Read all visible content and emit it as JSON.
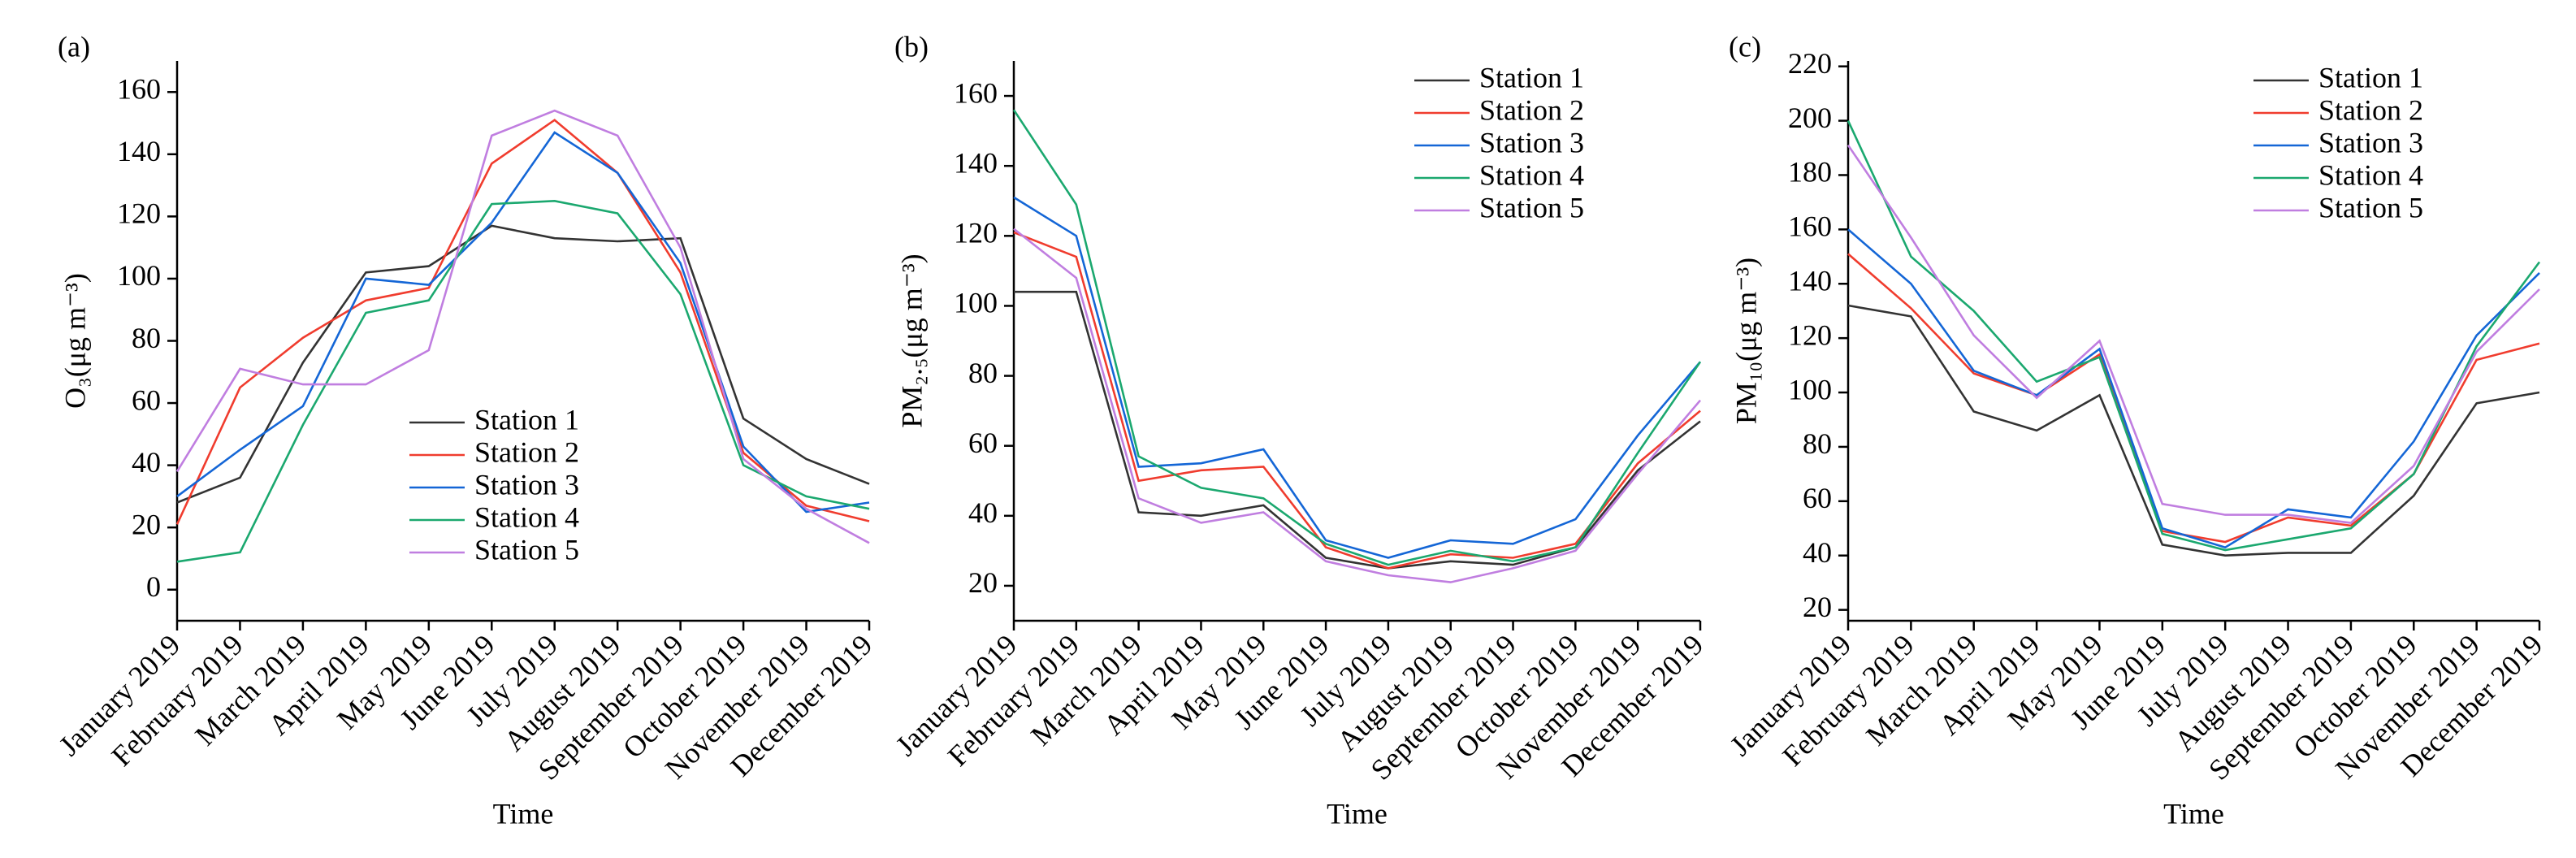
{
  "chart_data": [
    {
      "type": "line",
      "title": "(a)",
      "y_label": "O₃(μg m⁻³)",
      "x_label": "Time",
      "categories": [
        "January 2019",
        "February 2019",
        "March 2019",
        "April 2019",
        "May 2019",
        "June 2019",
        "July 2019",
        "August 2019",
        "September 2019",
        "October 2019",
        "November 2019",
        "December 2019"
      ],
      "series": [
        {
          "name": "Station 1",
          "color": "#333333",
          "values": [
            28,
            36,
            73,
            102,
            104,
            117,
            113,
            112,
            113,
            55,
            42,
            34
          ]
        },
        {
          "name": "Station 2",
          "color": "#f03c2e",
          "values": [
            21,
            65,
            81,
            93,
            97,
            137,
            151,
            134,
            102,
            44,
            27,
            22
          ]
        },
        {
          "name": "Station 3",
          "color": "#1466d6",
          "values": [
            30,
            45,
            59,
            100,
            98,
            118,
            147,
            134,
            105,
            46,
            25,
            28
          ]
        },
        {
          "name": "Station 4",
          "color": "#1ba86f",
          "values": [
            9,
            12,
            53,
            89,
            93,
            124,
            125,
            121,
            95,
            40,
            30,
            26
          ]
        },
        {
          "name": "Station 5",
          "color": "#c07ee0",
          "values": [
            38,
            71,
            66,
            66,
            77,
            146,
            154,
            146,
            110,
            42,
            26,
            15
          ]
        }
      ],
      "ylim": [
        -10,
        170
      ],
      "yticks": [
        0,
        20,
        40,
        60,
        80,
        100,
        120,
        140,
        160
      ],
      "legend": "lower center"
    },
    {
      "type": "line",
      "title": "(b)",
      "y_label": "PM₂.₅(μg m⁻³)",
      "x_label": "Time",
      "categories": [
        "January 2019",
        "February 2019",
        "March 2019",
        "April 2019",
        "May 2019",
        "June 2019",
        "July 2019",
        "August 2019",
        "September 2019",
        "October 2019",
        "November 2019",
        "December 2019"
      ],
      "series": [
        {
          "name": "Station 1",
          "color": "#333333",
          "values": [
            104,
            104,
            41,
            40,
            43,
            28,
            25,
            27,
            26,
            31,
            53,
            67
          ]
        },
        {
          "name": "Station 2",
          "color": "#f03c2e",
          "values": [
            121,
            114,
            50,
            53,
            54,
            31,
            25,
            29,
            28,
            32,
            55,
            70
          ]
        },
        {
          "name": "Station 3",
          "color": "#1466d6",
          "values": [
            131,
            120,
            54,
            55,
            59,
            33,
            28,
            33,
            32,
            39,
            63,
            84
          ]
        },
        {
          "name": "Station 4",
          "color": "#1ba86f",
          "values": [
            156,
            129,
            57,
            48,
            45,
            32,
            26,
            30,
            27,
            31,
            58,
            84
          ]
        },
        {
          "name": "Station 5",
          "color": "#c07ee0",
          "values": [
            122,
            108,
            45,
            38,
            41,
            27,
            23,
            21,
            25,
            30,
            52,
            73
          ]
        }
      ],
      "ylim": [
        10,
        170
      ],
      "yticks": [
        20,
        40,
        60,
        80,
        100,
        120,
        140,
        160
      ],
      "legend": "upper right"
    },
    {
      "type": "line",
      "title": "(c)",
      "y_label": "PM₁₀(μg m⁻³)",
      "x_label": "Time",
      "categories": [
        "January 2019",
        "February 2019",
        "March 2019",
        "April 2019",
        "May 2019",
        "June 2019",
        "July 2019",
        "August 2019",
        "September 2019",
        "October 2019",
        "November 2019",
        "December 2019"
      ],
      "series": [
        {
          "name": "Station 1",
          "color": "#333333",
          "values": [
            132,
            128,
            93,
            86,
            99,
            44,
            40,
            41,
            41,
            62,
            96,
            100
          ]
        },
        {
          "name": "Station 2",
          "color": "#f03c2e",
          "values": [
            151,
            131,
            107,
            99,
            114,
            49,
            45,
            54,
            51,
            70,
            112,
            118
          ]
        },
        {
          "name": "Station 3",
          "color": "#1466d6",
          "values": [
            160,
            140,
            108,
            99,
            116,
            50,
            43,
            57,
            54,
            82,
            121,
            144
          ]
        },
        {
          "name": "Station 4",
          "color": "#1ba86f",
          "values": [
            200,
            150,
            130,
            104,
            113,
            48,
            42,
            46,
            50,
            70,
            117,
            148
          ]
        },
        {
          "name": "Station 5",
          "color": "#c07ee0",
          "values": [
            191,
            157,
            121,
            98,
            119,
            59,
            55,
            55,
            52,
            73,
            115,
            138
          ]
        }
      ],
      "ylim": [
        16,
        222
      ],
      "yticks": [
        20,
        40,
        60,
        80,
        100,
        120,
        140,
        160,
        180,
        200,
        220
      ],
      "legend": "upper right"
    }
  ]
}
